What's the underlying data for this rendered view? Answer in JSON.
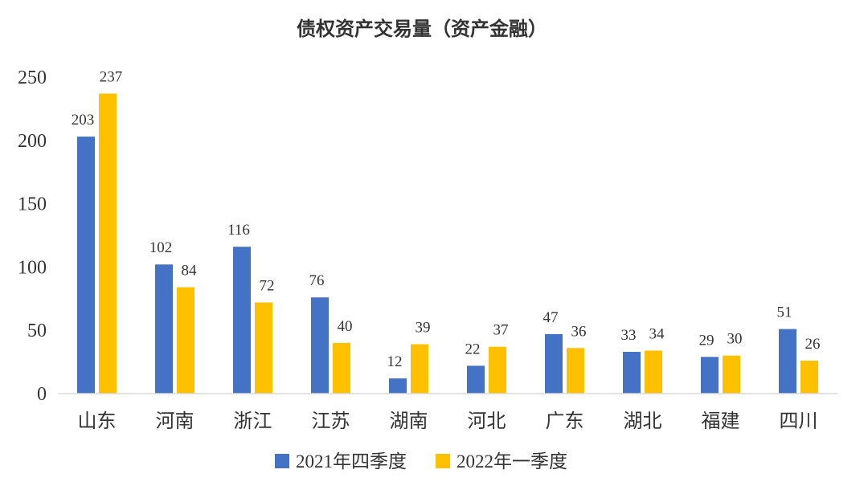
{
  "chart_data": {
    "type": "bar",
    "title": "债权资产交易量（资产金融）",
    "categories": [
      "山东",
      "河南",
      "浙江",
      "江苏",
      "湖南",
      "河北",
      "广东",
      "湖北",
      "福建",
      "四川"
    ],
    "series": [
      {
        "name": "2021年四季度",
        "color": "#4472C4",
        "values": [
          203,
          102,
          116,
          76,
          12,
          22,
          47,
          33,
          29,
          51
        ]
      },
      {
        "name": "2022年一季度",
        "color": "#FFC000",
        "values": [
          237,
          84,
          72,
          40,
          39,
          37,
          36,
          34,
          30,
          26
        ]
      }
    ],
    "ylim": [
      0,
      250
    ],
    "yticks": [
      0,
      50,
      100,
      150,
      200,
      250
    ],
    "xlabel": "",
    "ylabel": "",
    "grid": false,
    "legend_position": "bottom"
  }
}
